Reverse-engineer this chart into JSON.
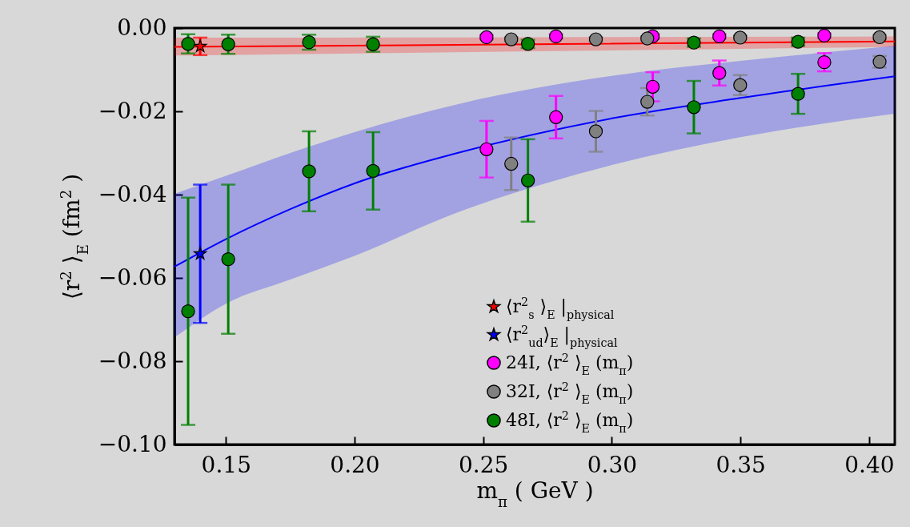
{
  "chart_data": {
    "type": "scatter",
    "xlabel": "m$_{π}$ ( GeV )",
    "ylabel": "⟨r$^{2}$ ⟩$_{E}$ (fm$^{2}$ )",
    "xlim": [
      0.13,
      0.41
    ],
    "ylim": [
      -0.1,
      0.0
    ],
    "xticks": [
      {
        "value": 0.15,
        "label": "0.15"
      },
      {
        "value": 0.2,
        "label": "0.20"
      },
      {
        "value": 0.25,
        "label": "0.25"
      },
      {
        "value": 0.3,
        "label": "0.30"
      },
      {
        "value": 0.35,
        "label": "0.35"
      },
      {
        "value": 0.4,
        "label": "0.40"
      }
    ],
    "yticks": [
      {
        "value": -0.1,
        "label": "−0.10"
      },
      {
        "value": -0.08,
        "label": "−0.08"
      },
      {
        "value": -0.06,
        "label": "−0.06"
      },
      {
        "value": -0.04,
        "label": "−0.04"
      },
      {
        "value": -0.02,
        "label": "−0.02"
      },
      {
        "value": 0.0,
        "label": "0.00"
      }
    ],
    "grid": false,
    "legend": "bottom right",
    "series": [
      {
        "type": "line",
        "color": "#ff0000",
        "x": [
          0.13,
          0.27,
          0.41
        ],
        "values": [
          -0.0045,
          -0.0039,
          -0.0032
        ],
        "lower": [
          -0.0066,
          -0.0056,
          -0.0045
        ],
        "upper": [
          -0.0023,
          -0.0022,
          -0.002
        ]
      },
      {
        "type": "line",
        "color": "#0000ff",
        "x": [
          0.13,
          0.15,
          0.175,
          0.2,
          0.24,
          0.3,
          0.35,
          0.41
        ],
        "values": [
          -0.0573,
          -0.0507,
          -0.0435,
          -0.0373,
          -0.03,
          -0.0217,
          -0.0168,
          -0.0116
        ],
        "lower": [
          -0.0743,
          -0.0662,
          -0.0604,
          -0.0547,
          -0.0443,
          -0.0329,
          -0.0262,
          -0.0206
        ],
        "upper": [
          -0.0398,
          -0.0355,
          -0.03,
          -0.025,
          -0.0183,
          -0.0115,
          -0.0079,
          -0.0043
        ]
      },
      {
        "name": "⟨r$^{2}$$_{s}$ ⟩$_{E}$ |$_{physical}$",
        "color": "#ff0000",
        "marker": "star",
        "x": [
          0.14
        ],
        "values": [
          -0.0044
        ],
        "errors": [
          0.0021
        ]
      },
      {
        "name": "⟨r$^{2}$$_{ud}$⟩$_{E}$ |$_{physical}$",
        "color": "#0000ff",
        "marker": "star",
        "x": [
          0.14
        ],
        "values": [
          -0.0542
        ],
        "errors": [
          0.0166
        ]
      },
      {
        "name": "24I, ⟨r$^{2}$ ⟩$_{E}$ (m$_{π}$)",
        "color": "#ff00ff",
        "marker": "circle",
        "x": [
          0.2513,
          0.2783,
          0.3159,
          0.3418,
          0.3826,
          0.2513,
          0.2783,
          0.3159,
          0.3418,
          0.3826
        ],
        "values": [
          -0.0291,
          -0.0214,
          -0.0141,
          -0.0108,
          -0.0082,
          -0.0022,
          -0.002,
          -0.002,
          -0.002,
          -0.0018
        ],
        "errors": [
          0.0068,
          0.0051,
          0.0035,
          0.003,
          0.0022,
          0.0005,
          0.0005,
          0.0005,
          0.0005,
          0.0005
        ]
      },
      {
        "name": "32I, ⟨r$^{2}$ ⟩$_{E}$ (m$_{π}$)",
        "color": "#808080",
        "marker": "circle",
        "x": [
          0.2609,
          0.2938,
          0.3138,
          0.3499,
          0.4041,
          0.2609,
          0.2938,
          0.3138,
          0.3499,
          0.4041
        ],
        "values": [
          -0.0326,
          -0.0248,
          -0.0177,
          -0.0137,
          -0.0081,
          -0.0027,
          -0.0027,
          -0.0025,
          -0.0023,
          -0.0022
        ],
        "errors": [
          0.0063,
          0.0049,
          0.0033,
          0.0024,
          0.0014,
          0.0005,
          0.0005,
          0.0005,
          0.0005,
          0.0005
        ]
      },
      {
        "name": "48I, ⟨r$^{2}$ ⟩$_{E}$ (m$_{π}$)",
        "color": "#008000",
        "marker": "circle",
        "x": [
          0.1353,
          0.1509,
          0.1823,
          0.2072,
          0.2674,
          0.3319,
          0.3724,
          0.1353,
          0.1509,
          0.1823,
          0.2072,
          0.2674,
          0.3319,
          0.3724
        ],
        "values": [
          -0.068,
          -0.0555,
          -0.0344,
          -0.0343,
          -0.0366,
          -0.019,
          -0.0158,
          -0.0038,
          -0.0039,
          -0.0034,
          -0.0039,
          -0.0038,
          -0.0035,
          -0.0033
        ],
        "errors": [
          0.0273,
          0.0179,
          0.0096,
          0.0093,
          0.0099,
          0.0063,
          0.0048,
          0.0023,
          0.0023,
          0.0018,
          0.0018,
          0.001,
          0.001,
          0.001
        ]
      }
    ]
  }
}
